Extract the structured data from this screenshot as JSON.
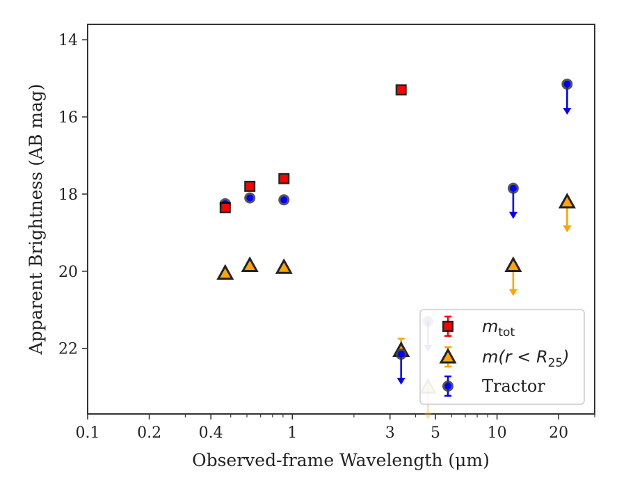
{
  "chart_data": {
    "type": "scatter",
    "xlabel": "Observed-frame Wavelength (μm)",
    "ylabel": "Apparent Brightness (AB mag)",
    "xscale": "log",
    "xlim": [
      0.1,
      30
    ],
    "ylim": [
      23.7,
      13.6
    ],
    "y_inverted": true,
    "xticks": [
      {
        "value": 0.1,
        "label": "0.1"
      },
      {
        "value": 0.2,
        "label": "0.2"
      },
      {
        "value": 0.4,
        "label": "0.4"
      },
      {
        "value": 1,
        "label": "1"
      },
      {
        "value": 3,
        "label": "3"
      },
      {
        "value": 5,
        "label": "5"
      },
      {
        "value": 10,
        "label": "10"
      },
      {
        "value": 20,
        "label": "20"
      }
    ],
    "yticks": [
      {
        "value": 14,
        "label": "14"
      },
      {
        "value": 16,
        "label": "16"
      },
      {
        "value": 18,
        "label": "18"
      },
      {
        "value": 20,
        "label": "20"
      },
      {
        "value": 22,
        "label": "22"
      }
    ],
    "grid": false,
    "legend_position": "lower-right",
    "series": [
      {
        "key": "mtot",
        "marker": "square",
        "color": "#ff0000",
        "edge": "#222222",
        "points": [
          {
            "x": 0.47,
            "y": 18.35
          },
          {
            "x": 0.62,
            "y": 17.8
          },
          {
            "x": 0.91,
            "y": 17.6
          },
          {
            "x": 3.4,
            "y": 15.3
          }
        ]
      },
      {
        "key": "mr25",
        "marker": "triangle",
        "color": "#ffa500",
        "edge": "#222222",
        "points": [
          {
            "x": 0.47,
            "y": 20.05
          },
          {
            "x": 0.62,
            "y": 19.85
          },
          {
            "x": 0.91,
            "y": 19.9
          },
          {
            "x": 3.4,
            "y": 22.05,
            "err": 0.3
          },
          {
            "x": 4.6,
            "y": 23.0,
            "upper_limit": true,
            "faded": true
          },
          {
            "x": 12.0,
            "y": 19.85,
            "upper_limit": true
          },
          {
            "x": 22.0,
            "y": 18.2,
            "upper_limit": true
          }
        ]
      },
      {
        "key": "tractor",
        "marker": "circle",
        "color": "#0000ff",
        "edge": "#444444",
        "points": [
          {
            "x": 0.47,
            "y": 18.25
          },
          {
            "x": 0.62,
            "y": 18.1
          },
          {
            "x": 0.91,
            "y": 18.15
          },
          {
            "x": 3.4,
            "y": 22.15,
            "upper_limit": true
          },
          {
            "x": 4.6,
            "y": 21.3,
            "upper_limit": true,
            "faded": true
          },
          {
            "x": 12.0,
            "y": 17.85,
            "upper_limit": true
          },
          {
            "x": 22.0,
            "y": 15.15,
            "upper_limit": true
          }
        ]
      }
    ],
    "legend": {
      "entries": [
        {
          "key": "mtot",
          "main": "m",
          "sub": "tot",
          "rest": ""
        },
        {
          "key": "mr25",
          "main": "m(r < R",
          "sub": "25",
          "rest": ")"
        },
        {
          "key": "tractor",
          "main": "Tractor",
          "sub": "",
          "rest": ""
        }
      ]
    }
  }
}
